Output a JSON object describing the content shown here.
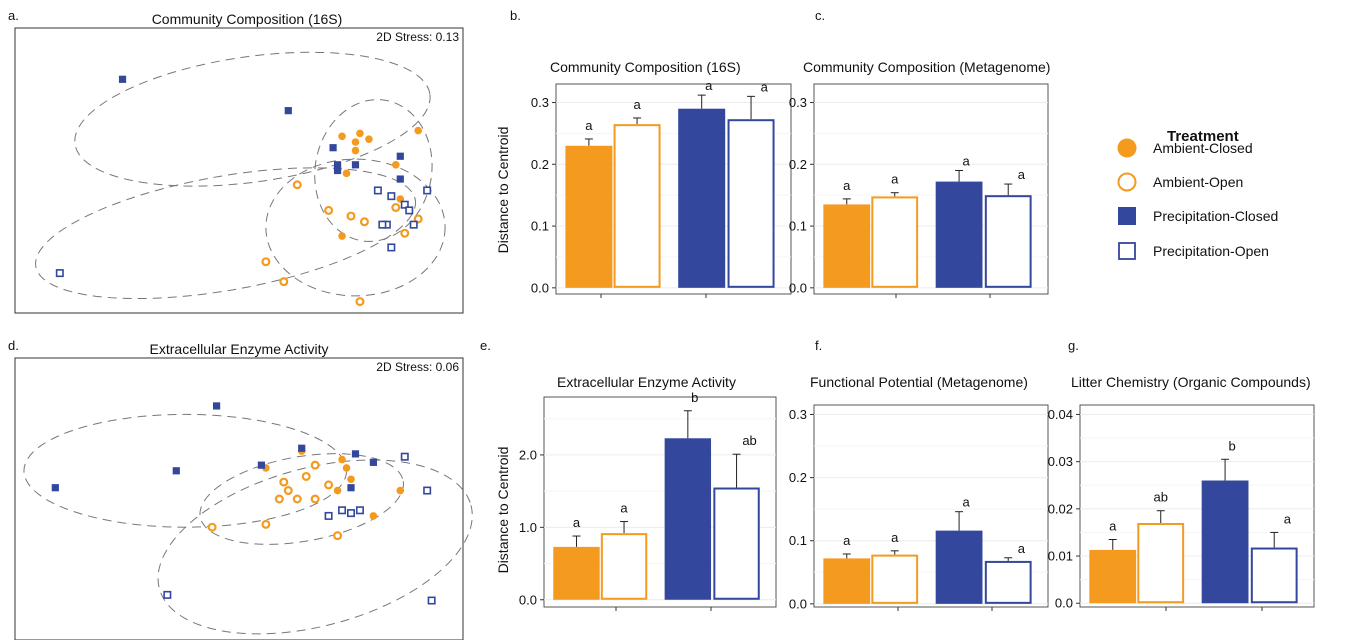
{
  "colors": {
    "ambient": "#f39a1f",
    "precipitation": "#33479c",
    "axis": "#333333",
    "grid": "#ececec",
    "ellipse": "#777777"
  },
  "legend": {
    "title": "Treatment",
    "items": [
      {
        "label": "Ambient-Closed",
        "marker": "filled-circle"
      },
      {
        "label": "Ambient-Open",
        "marker": "open-circle"
      },
      {
        "label": "Precipitation-Closed",
        "marker": "filled-square"
      },
      {
        "label": "Precipitation-Open",
        "marker": "open-square"
      }
    ]
  },
  "chart_data": [
    {
      "panel": "a.",
      "type": "scatter",
      "title": "Community Composition (16S)",
      "stress": "2D Stress: 0.13",
      "series": [
        {
          "name": "Ambient-Closed",
          "points": [
            [
              0.73,
              0.27
            ],
            [
              0.74,
              0.49
            ],
            [
              0.79,
              0.61
            ],
            [
              0.76,
              0.6
            ],
            [
              0.73,
              0.62
            ],
            [
              0.86,
              0.4
            ],
            [
              0.77,
              0.63
            ],
            [
              0.9,
              0.64
            ],
            [
              0.85,
              0.52
            ],
            [
              0.76,
              0.57
            ]
          ]
        },
        {
          "name": "Ambient-Open",
          "points": [
            [
              0.63,
              0.45
            ],
            [
              0.7,
              0.36
            ],
            [
              0.75,
              0.34
            ],
            [
              0.78,
              0.32
            ],
            [
              0.9,
              0.33
            ],
            [
              0.87,
              0.28
            ],
            [
              0.56,
              0.18
            ],
            [
              0.6,
              0.11
            ],
            [
              0.77,
              0.04
            ],
            [
              0.85,
              0.37
            ]
          ]
        },
        {
          "name": "Precipitation-Closed",
          "points": [
            [
              0.24,
              0.82
            ],
            [
              0.61,
              0.71
            ],
            [
              0.71,
              0.58
            ],
            [
              0.72,
              0.5
            ],
            [
              0.76,
              0.52
            ],
            [
              0.86,
              0.55
            ],
            [
              0.86,
              0.47
            ],
            [
              0.72,
              0.52
            ]
          ]
        },
        {
          "name": "Precipitation-Open",
          "points": [
            [
              0.1,
              0.14
            ],
            [
              0.81,
              0.43
            ],
            [
              0.84,
              0.41
            ],
            [
              0.87,
              0.38
            ],
            [
              0.92,
              0.43
            ],
            [
              0.88,
              0.36
            ],
            [
              0.83,
              0.31
            ],
            [
              0.82,
              0.31
            ],
            [
              0.89,
              0.31
            ],
            [
              0.84,
              0.23
            ]
          ]
        }
      ],
      "ellipses": [
        {
          "cx": 0.53,
          "cy": 0.68,
          "rx": 0.4,
          "ry": 0.22,
          "rotate": -8
        },
        {
          "cx": 0.8,
          "cy": 0.5,
          "rx": 0.13,
          "ry": 0.25,
          "rotate": 10
        },
        {
          "cx": 0.47,
          "cy": 0.28,
          "rx": 0.43,
          "ry": 0.2,
          "rotate": -10
        },
        {
          "cx": 0.76,
          "cy": 0.3,
          "rx": 0.2,
          "ry": 0.24,
          "rotate": 0
        }
      ]
    },
    {
      "panel": "b.",
      "type": "bar",
      "title": "Community Composition (16S)",
      "ylabel": "Distance to Centroid",
      "ylim": [
        -0.01,
        0.33
      ],
      "yticks": [
        "0.0",
        "0.1",
        "0.2",
        "0.3"
      ],
      "categories": [
        "Ambient-Closed",
        "Ambient-Open",
        "Precipitation-Closed",
        "Precipitation-Open"
      ],
      "values": [
        0.23,
        0.265,
        0.29,
        0.273
      ],
      "errors": [
        0.011,
        0.01,
        0.022,
        0.037
      ],
      "letters": [
        "a",
        "a",
        "a",
        "a"
      ]
    },
    {
      "panel": "c.",
      "type": "bar",
      "title": "Community Composition (Metagenome)",
      "ylabel": "",
      "ylim": [
        -0.01,
        0.33
      ],
      "yticks": [
        "0.0",
        "0.1",
        "0.2",
        "0.3"
      ],
      "categories": [
        "Ambient-Closed",
        "Ambient-Open",
        "Precipitation-Closed",
        "Precipitation-Open"
      ],
      "values": [
        0.135,
        0.148,
        0.172,
        0.15
      ],
      "errors": [
        0.009,
        0.006,
        0.018,
        0.018
      ],
      "letters": [
        "a",
        "a",
        "a",
        "a"
      ]
    },
    {
      "panel": "d.",
      "type": "scatter",
      "title": "Extracellular Enzyme Activity",
      "stress": "2D Stress: 0.06",
      "series": [
        {
          "name": "Ambient-Closed",
          "points": [
            [
              0.64,
              0.67
            ],
            [
              0.56,
              0.61
            ],
            [
              0.73,
              0.64
            ],
            [
              0.74,
              0.61
            ],
            [
              0.75,
              0.57
            ],
            [
              0.72,
              0.53
            ],
            [
              0.86,
              0.53
            ],
            [
              0.8,
              0.44
            ]
          ]
        },
        {
          "name": "Ambient-Open",
          "points": [
            [
              0.65,
              0.58
            ],
            [
              0.6,
              0.56
            ],
            [
              0.61,
              0.53
            ],
            [
              0.59,
              0.5
            ],
            [
              0.63,
              0.5
            ],
            [
              0.67,
              0.5
            ],
            [
              0.7,
              0.55
            ],
            [
              0.67,
              0.62
            ],
            [
              0.44,
              0.4
            ],
            [
              0.56,
              0.41
            ],
            [
              0.72,
              0.37
            ]
          ]
        },
        {
          "name": "Precipitation-Closed",
          "points": [
            [
              0.45,
              0.83
            ],
            [
              0.64,
              0.68
            ],
            [
              0.36,
              0.6
            ],
            [
              0.55,
              0.62
            ],
            [
              0.76,
              0.66
            ],
            [
              0.8,
              0.63
            ],
            [
              0.75,
              0.54
            ],
            [
              0.09,
              0.54
            ]
          ]
        },
        {
          "name": "Precipitation-Open",
          "points": [
            [
              0.87,
              0.65
            ],
            [
              0.92,
              0.53
            ],
            [
              0.77,
              0.46
            ],
            [
              0.73,
              0.46
            ],
            [
              0.75,
              0.45
            ],
            [
              0.7,
              0.44
            ],
            [
              0.34,
              0.16
            ],
            [
              0.93,
              0.14
            ]
          ]
        }
      ],
      "ellipses": [
        {
          "cx": 0.38,
          "cy": 0.6,
          "rx": 0.36,
          "ry": 0.2,
          "rotate": 0
        },
        {
          "cx": 0.64,
          "cy": 0.5,
          "rx": 0.23,
          "ry": 0.15,
          "rotate": -10
        },
        {
          "cx": 0.67,
          "cy": 0.33,
          "rx": 0.36,
          "ry": 0.28,
          "rotate": -15
        }
      ]
    },
    {
      "panel": "e.",
      "type": "bar",
      "title": "Extracellular Enzyme Activity",
      "ylabel": "Distance to Centroid",
      "ylim": [
        -0.1,
        2.8
      ],
      "yticks": [
        "0.0",
        "1.0",
        "2.0"
      ],
      "categories": [
        "Ambient-Closed",
        "Ambient-Open",
        "Precipitation-Closed",
        "Precipitation-Open"
      ],
      "values": [
        0.73,
        0.92,
        2.23,
        1.55
      ],
      "errors": [
        0.15,
        0.16,
        0.38,
        0.46
      ],
      "letters": [
        "a",
        "a",
        "b",
        "ab"
      ]
    },
    {
      "panel": "f.",
      "type": "bar",
      "title": "Functional Potential (Metagenome)",
      "ylabel": "",
      "ylim": [
        -0.005,
        0.315
      ],
      "yticks": [
        "0.0",
        "0.1",
        "0.2",
        "0.3"
      ],
      "categories": [
        "Ambient-Closed",
        "Ambient-Open",
        "Precipitation-Closed",
        "Precipitation-Open"
      ],
      "values": [
        0.072,
        0.078,
        0.116,
        0.068
      ],
      "errors": [
        0.007,
        0.006,
        0.03,
        0.005
      ],
      "letters": [
        "a",
        "a",
        "a",
        "a"
      ]
    },
    {
      "panel": "g.",
      "type": "bar",
      "title": "Litter Chemistry (Organic Compounds)",
      "ylabel": "",
      "ylim": [
        -0.0008,
        0.042
      ],
      "yticks": [
        "0.0",
        "0.01",
        "0.02",
        "0.03",
        "0.04"
      ],
      "categories": [
        "Ambient-Closed",
        "Ambient-Open",
        "Precipitation-Closed",
        "Precipitation-Open"
      ],
      "values": [
        0.0113,
        0.017,
        0.026,
        0.0118
      ],
      "errors": [
        0.0022,
        0.0026,
        0.0045,
        0.0032
      ],
      "letters": [
        "a",
        "ab",
        "b",
        "a"
      ]
    }
  ]
}
